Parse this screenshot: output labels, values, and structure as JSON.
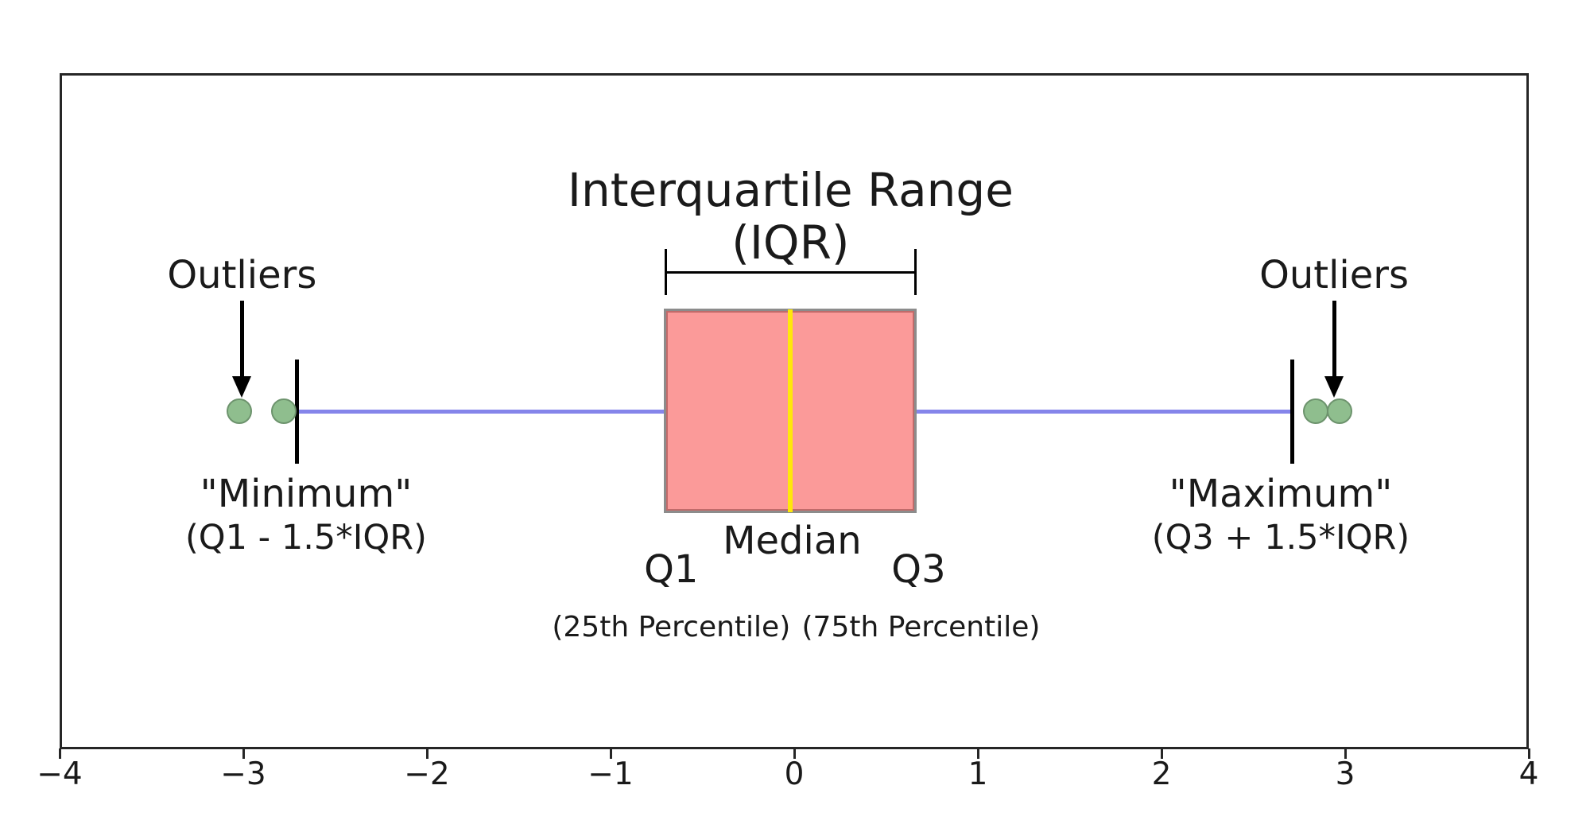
{
  "figure": {
    "title_line1": "Interquartile Range",
    "title_line2": "(IQR)",
    "labels": {
      "outliers_left": "Outliers",
      "outliers_right": "Outliers",
      "minimum_line1": "\"Minimum\"",
      "minimum_line2": "(Q1 - 1.5*IQR)",
      "maximum_line1": "\"Maximum\"",
      "maximum_line2": "(Q3 + 1.5*IQR)",
      "q1_label": "Q1",
      "q1_sub": "(25th Percentile)",
      "median_label": "Median",
      "q3_label": "Q3",
      "q3_sub": "(75th Percentile)"
    }
  },
  "chart_data": {
    "type": "boxplot",
    "orientation": "horizontal",
    "title": "Interquartile Range (IQR)",
    "xlabel": "",
    "ylabel": "",
    "xlim": [
      -4,
      4
    ],
    "x_ticks": [
      -4,
      -3,
      -2,
      -1,
      0,
      1,
      2,
      3,
      4
    ],
    "grid": false,
    "box": {
      "q1": -0.7,
      "median": -0.02,
      "q3": 0.66,
      "whisker_low": -2.71,
      "whisker_high": 2.71
    },
    "outliers_low": [
      -3.02,
      -2.78
    ],
    "outliers_high": [
      2.84,
      2.97
    ],
    "colors": {
      "box_fill": "#fb9a99",
      "box_edge": "#8c8c8c",
      "median_line": "#ffe70a",
      "whisker_line": "#8585ea",
      "whisker_cap": "#000000",
      "outlier_fill": "#8fbe8e",
      "outlier_edge": "#6d936d",
      "annotation_text": "#1a1a1a",
      "frame": "#262626"
    }
  }
}
